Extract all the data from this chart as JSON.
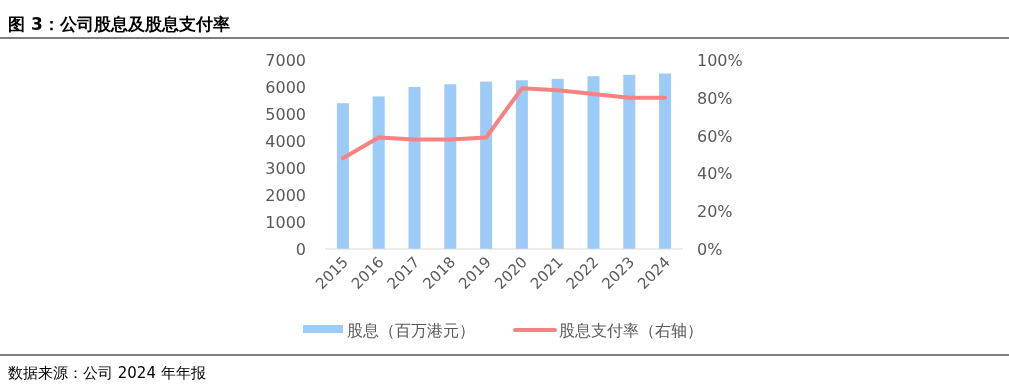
{
  "chart_data": {
    "type": "bar",
    "title": "图 3：公司股息及股息支付率",
    "annotations": [
      "数据来源：公司 2024 年年报"
    ],
    "categories": [
      "2015",
      "2016",
      "2017",
      "2018",
      "2019",
      "2020",
      "2021",
      "2022",
      "2023",
      "2024"
    ],
    "series": [
      {
        "name": "股息（百万港元）",
        "color": "#9dcbf8",
        "values": [
          5400,
          5650,
          6000,
          6100,
          6200,
          6250,
          6300,
          6400,
          6450,
          6500
        ]
      },
      {
        "name": "股息支付率（右轴）",
        "type": "line",
        "axis": "y2",
        "color": "#f88282",
        "values": [
          48,
          59,
          58,
          58,
          59,
          85,
          84,
          82,
          80,
          80
        ]
      }
    ],
    "ylim": [
      0,
      7000
    ],
    "yticks": [
      0,
      1000,
      2000,
      3000,
      4000,
      5000,
      6000,
      7000
    ],
    "y2lim": [
      0,
      100
    ],
    "y2ticks": [
      {
        "value": 0,
        "label": "0%"
      },
      {
        "value": 20,
        "label": "20%"
      },
      {
        "value": 40,
        "label": "40%"
      },
      {
        "value": 60,
        "label": "60%"
      },
      {
        "value": 80,
        "label": "80%"
      },
      {
        "value": 100,
        "label": "100%"
      }
    ],
    "legend": "bottom"
  }
}
